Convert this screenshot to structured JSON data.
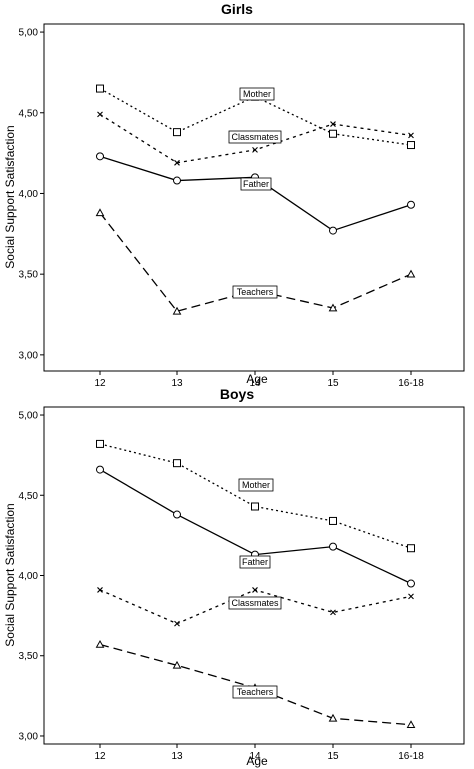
{
  "chart_data": [
    {
      "type": "line",
      "title": "Girls",
      "xlabel": "Age",
      "ylabel": "Social Support Satisfaction",
      "categories": [
        "12",
        "13",
        "14",
        "15",
        "16-18"
      ],
      "yticks": [
        "3,00",
        "3,50",
        "4,00",
        "4,50",
        "5,00"
      ],
      "ylim": [
        2.9,
        5.05
      ],
      "grid": false,
      "series": [
        {
          "name": "Mother",
          "marker": "square",
          "dash": "dotted",
          "values": [
            4.65,
            4.38,
            4.6,
            4.37,
            4.3
          ]
        },
        {
          "name": "Classmates",
          "marker": "x",
          "dash": "short-dash",
          "values": [
            4.49,
            4.19,
            4.27,
            4.43,
            4.36
          ]
        },
        {
          "name": "Father",
          "marker": "circle",
          "dash": "solid",
          "values": [
            4.23,
            4.08,
            4.1,
            3.77,
            3.93
          ]
        },
        {
          "name": "Teachers",
          "marker": "triangle",
          "dash": "long-dash",
          "values": [
            3.88,
            3.27,
            3.4,
            3.29,
            3.5
          ]
        }
      ]
    },
    {
      "type": "line",
      "title": "Boys",
      "xlabel": "Age",
      "ylabel": "Social Support Satisfaction",
      "categories": [
        "12",
        "13",
        "14",
        "15",
        "16-18"
      ],
      "yticks": [
        "3,00",
        "3,50",
        "4,00",
        "4,50",
        "5,00"
      ],
      "ylim": [
        2.95,
        5.05
      ],
      "grid": false,
      "series": [
        {
          "name": "Mother",
          "marker": "square",
          "dash": "dotted",
          "values": [
            4.82,
            4.7,
            4.43,
            4.34,
            4.17
          ]
        },
        {
          "name": "Father",
          "marker": "circle",
          "dash": "solid",
          "values": [
            4.66,
            4.38,
            4.13,
            4.18,
            3.95
          ]
        },
        {
          "name": "Classmates",
          "marker": "x",
          "dash": "short-dash",
          "values": [
            3.91,
            3.7,
            3.91,
            3.77,
            3.87
          ]
        },
        {
          "name": "Teachers",
          "marker": "triangle",
          "dash": "long-dash",
          "values": [
            3.57,
            3.44,
            3.3,
            3.11,
            3.07
          ]
        }
      ]
    }
  ]
}
